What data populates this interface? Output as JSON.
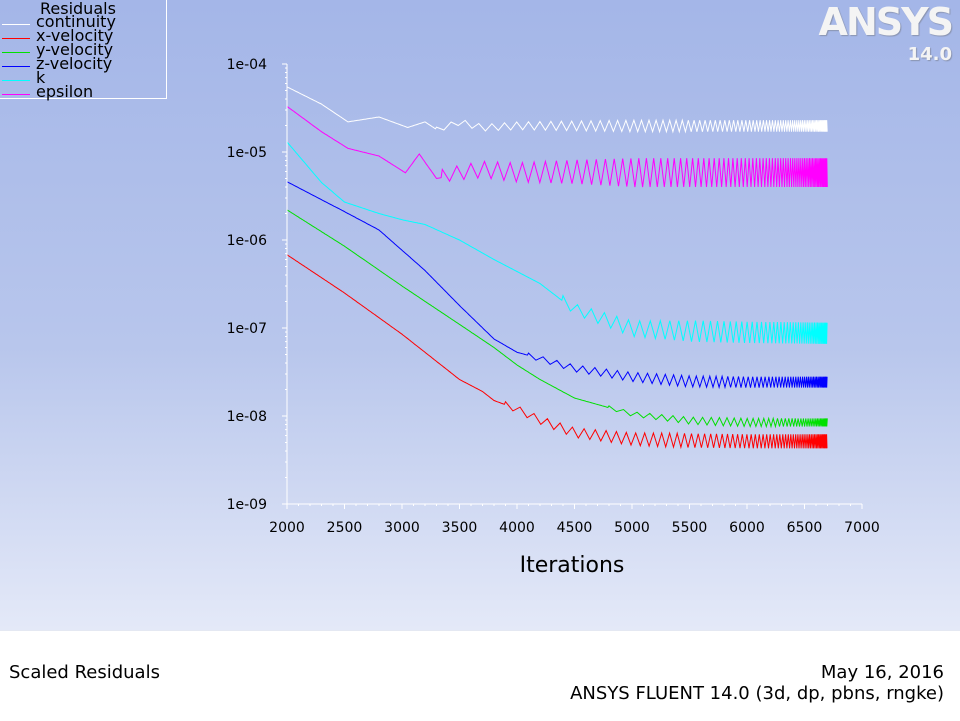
{
  "legend": {
    "title": "Residuals",
    "items": [
      {
        "label": "continuity",
        "color": "#ffffff"
      },
      {
        "label": "x-velocity",
        "color": "#ff0000"
      },
      {
        "label": "y-velocity",
        "color": "#00e000"
      },
      {
        "label": "z-velocity",
        "color": "#0000ff"
      },
      {
        "label": "k",
        "color": "#00ffff"
      },
      {
        "label": "epsilon",
        "color": "#ff00ff"
      }
    ]
  },
  "logo": {
    "text": "ANSYS",
    "version": "14.0"
  },
  "footer": {
    "left": "Scaled Residuals",
    "date": "May 16, 2016",
    "info": "ANSYS FLUENT 14.0 (3d, dp, pbns, rngke)"
  },
  "chart_data": {
    "type": "line",
    "title": "",
    "xlabel": "Iterations",
    "ylabel": "",
    "xlim": [
      2000,
      7000
    ],
    "ylim": [
      1e-09,
      0.0001
    ],
    "yscale": "log",
    "xticks": [
      "2000",
      "2500",
      "3000",
      "3500",
      "4000",
      "4500",
      "5000",
      "5500",
      "6000",
      "6500",
      "7000"
    ],
    "yticks": [
      "1e-09",
      "1e-08",
      "1e-07",
      "1e-06",
      "1e-05",
      "1e-04"
    ],
    "series": [
      {
        "name": "continuity",
        "color": "#ffffff",
        "x": [
          2000,
          2300,
          2530,
          2800,
          3050,
          3200,
          3300,
          3500,
          3700,
          4000,
          4500,
          5000,
          5500,
          6000,
          6700
        ],
        "y": [
          5.5e-05,
          3.5e-05,
          2.2e-05,
          2.5e-05,
          1.9e-05,
          2.2e-05,
          1.8e-05,
          2.2e-05,
          1.9e-05,
          2e-05,
          2e-05,
          2e-05,
          2e-05,
          2e-05,
          2e-05
        ],
        "osc": [
          {
            "from": 3300,
            "amp": [
              1.7e-05,
              2.3e-05
            ]
          }
        ]
      },
      {
        "name": "x-velocity",
        "color": "#ff0000",
        "x": [
          2000,
          2500,
          3000,
          3500,
          3700,
          3800,
          4000,
          4200,
          4500,
          5000,
          5500,
          6000,
          6700
        ],
        "y": [
          6.8e-07,
          2.5e-07,
          8.5e-08,
          2.6e-08,
          1.9e-08,
          1.5e-08,
          1.2e-08,
          9e-09,
          6.5e-09,
          5.5e-09,
          5.3e-09,
          5.2e-09,
          5.2e-09
        ],
        "osc": [
          {
            "from": 3900,
            "amp": [
              4.3e-09,
              6.2e-09
            ]
          }
        ]
      },
      {
        "name": "y-velocity",
        "color": "#00e000",
        "x": [
          2000,
          2500,
          3000,
          3500,
          3800,
          4000,
          4200,
          4500,
          5000,
          5500,
          6000,
          6700
        ],
        "y": [
          2.2e-06,
          8.5e-07,
          3e-07,
          1.1e-07,
          6e-08,
          3.8e-08,
          2.6e-08,
          1.6e-08,
          1.05e-08,
          8.8e-09,
          8.4e-09,
          8.4e-09
        ],
        "osc": [
          {
            "from": 4800,
            "amp": [
              7.6e-09,
              9.4e-09
            ]
          }
        ]
      },
      {
        "name": "z-velocity",
        "color": "#0000ff",
        "x": [
          2000,
          2500,
          2800,
          3200,
          3500,
          3800,
          4000,
          4200,
          4500,
          5000,
          5500,
          6000,
          6700
        ],
        "y": [
          4.6e-06,
          2.1e-06,
          1.3e-06,
          4.5e-07,
          1.8e-07,
          7.5e-08,
          5.3e-08,
          4.5e-08,
          3.5e-08,
          2.8e-08,
          2.5e-08,
          2.45e-08,
          2.45e-08
        ],
        "osc": [
          {
            "from": 4100,
            "amp": [
              2.1e-08,
              2.8e-08
            ]
          }
        ]
      },
      {
        "name": "k",
        "color": "#00ffff",
        "x": [
          2000,
          2300,
          2500,
          2800,
          3000,
          3200,
          3500,
          3800,
          4200,
          4500,
          5000,
          5500,
          6000,
          6700
        ],
        "y": [
          1.3e-05,
          4.5e-06,
          2.7e-06,
          2e-06,
          1.7e-06,
          1.5e-06,
          1e-06,
          6e-07,
          3.2e-07,
          1.6e-07,
          9.5e-08,
          8.8e-08,
          8.5e-08,
          8.3e-08
        ],
        "osc": [
          {
            "from": 4400,
            "amp": [
              6.6e-08,
              1.15e-07
            ]
          }
        ]
      },
      {
        "name": "epsilon",
        "color": "#ff00ff",
        "x": [
          2000,
          2300,
          2530,
          2800,
          3030,
          3150,
          3300,
          3480,
          3700,
          4000,
          4500,
          5000,
          5500,
          6000,
          6700
        ],
        "y": [
          3.3e-05,
          1.7e-05,
          1.1e-05,
          9e-06,
          5.8e-06,
          9.5e-06,
          5e-06,
          5.5e-06,
          6e-06,
          5.5e-06,
          5.5e-06,
          5.3e-06,
          5.3e-06,
          5.3e-06,
          5.3e-06
        ],
        "osc": [
          {
            "from": 3350,
            "amp": [
              4e-06,
              8.5e-06
            ]
          }
        ]
      }
    ],
    "grid": false,
    "legend_position": "top-left"
  }
}
